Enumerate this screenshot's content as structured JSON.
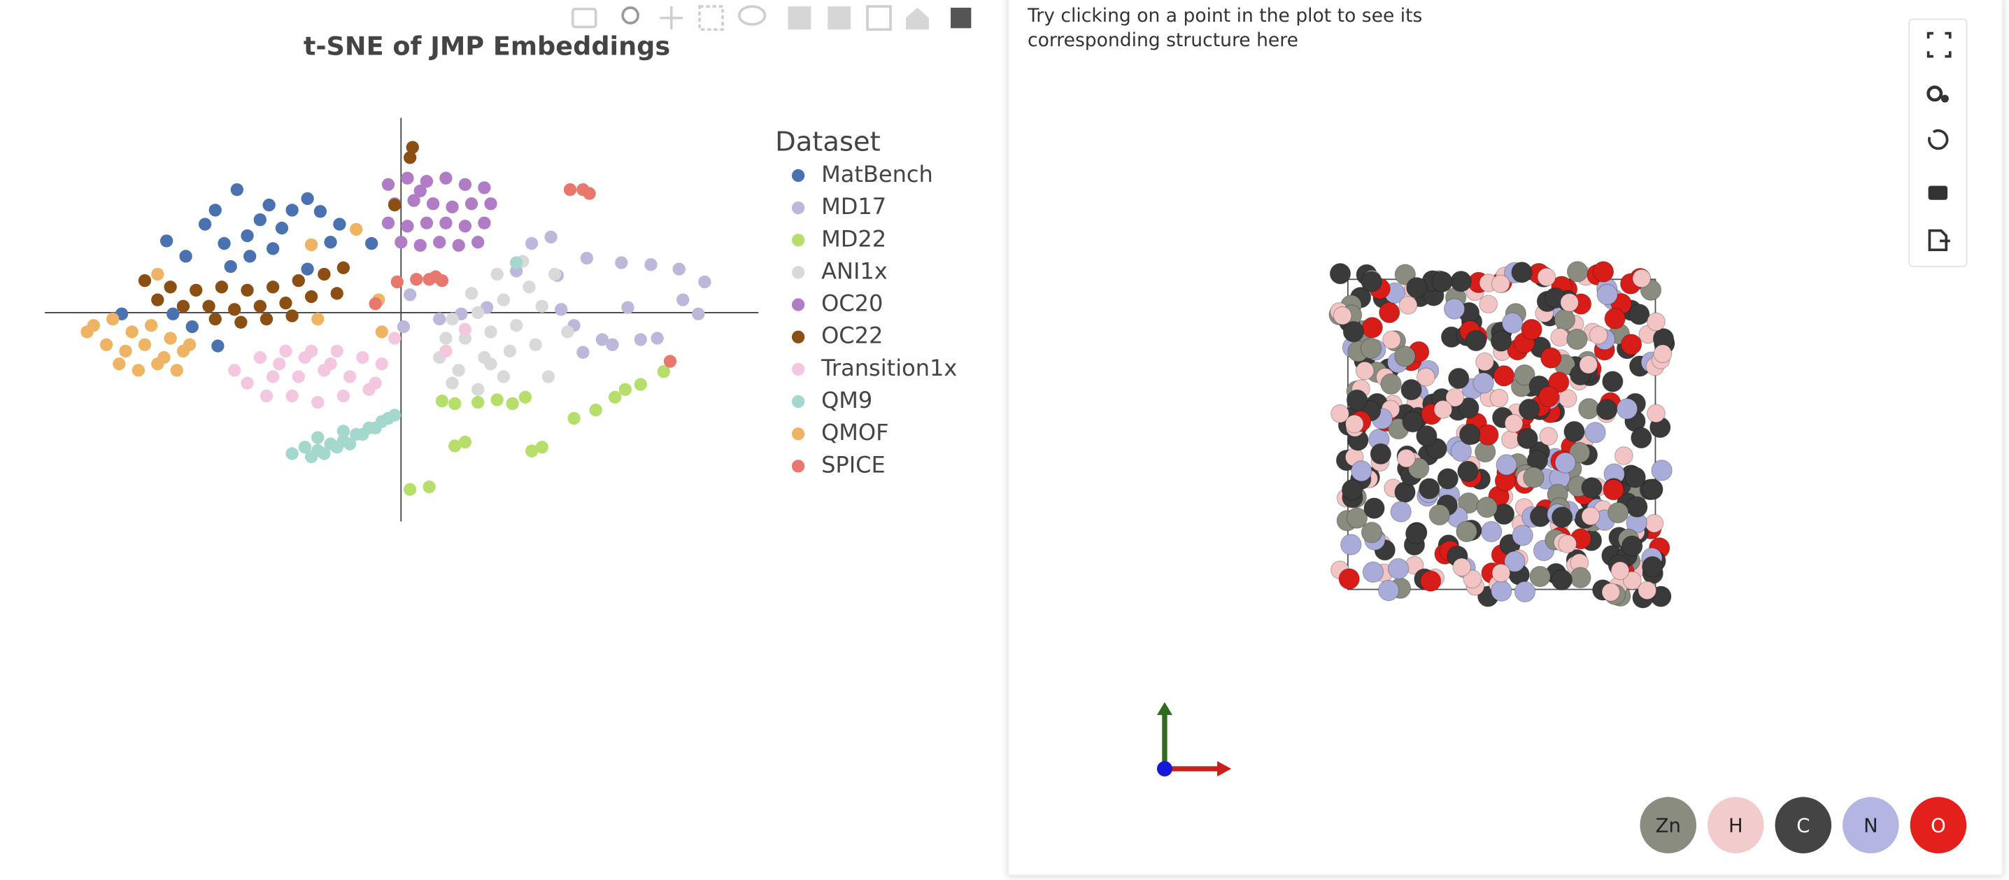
{
  "chart_data": {
    "type": "scatter",
    "title": "t-SNE of JMP Embeddings",
    "legend_title": "Dataset",
    "xlim": [
      -55.6,
      55.8
    ],
    "ylim": [
      -32.6,
      30.4
    ],
    "zeroline": true,
    "legend": "right",
    "series": [
      {
        "name": "MatBench",
        "color": "#4a72b0",
        "x": [
          -25.6,
          -14.6,
          -12.6,
          -20.6,
          -30.6,
          -36.6,
          -27.6,
          -18.6,
          -23.6,
          -9.6,
          -33.6,
          -26.6,
          -4.6,
          -14.6,
          -32.6,
          -35.6,
          -28.6,
          -43.6,
          -22,
          -17,
          -24,
          -29,
          -11,
          -20
        ],
        "values": [
          19.2,
          17.8,
          15.8,
          16.8,
          13.8,
          11.2,
          10.8,
          13.2,
          8.8,
          13.8,
          8.8,
          7.2,
          10.8,
          6.8,
          -2.2,
          -0.2,
          -5.2,
          -0.2,
          14.5,
          16,
          12,
          16,
          11,
          10
        ]
      },
      {
        "name": "MD17",
        "color": "#bcb8dc",
        "x": [
          23.4,
          20.4,
          34.4,
          43.4,
          47.4,
          46.4,
          35.4,
          31.4,
          37.4,
          28.4,
          9.4,
          13.4,
          0.4,
          1.4,
          24.4,
          39,
          44,
          29,
          25,
          18,
          33,
          40,
          6,
          27
        ],
        "values": [
          11.8,
          10.8,
          7.8,
          6.8,
          4.8,
          -0.2,
          0.8,
          -4.2,
          -4.2,
          -6.2,
          -0.2,
          0.8,
          -2.2,
          2.8,
          5.8,
          7.5,
          2,
          8.5,
          0.5,
          6.5,
          -5,
          -4,
          -1,
          -2
        ]
      },
      {
        "name": "MD22",
        "color": "#b5de6a",
        "x": [
          6.4,
          8.4,
          19.4,
          17.4,
          30.4,
          33.4,
          37.4,
          41,
          8.4,
          10,
          20.4,
          22,
          1.4,
          4.4,
          27,
          35,
          12,
          15
        ],
        "values": [
          -13.8,
          -14.2,
          -13.2,
          -14.2,
          -15.2,
          -13.2,
          -11.2,
          -9.2,
          -20.8,
          -20.2,
          -21.6,
          -21,
          -27.6,
          -27.2,
          -16.5,
          -12,
          -14,
          -13.6
        ]
      },
      {
        "name": "ANI1x",
        "color": "#d9d9d9",
        "x": [
          8,
          12,
          16,
          20,
          24,
          10,
          14,
          18,
          22,
          6,
          9,
          13,
          17,
          21,
          8,
          12,
          16,
          11,
          19,
          15,
          23,
          7,
          26,
          14
        ],
        "values": [
          -1,
          0,
          2,
          4,
          6,
          -4,
          -3,
          -2,
          1,
          -7,
          -9,
          -7,
          -6,
          -5,
          -11,
          -12,
          -10,
          3,
          8,
          6,
          -10,
          -4,
          -3,
          -8
        ]
      },
      {
        "name": "OC20",
        "color": "#b07cc6",
        "x": [
          -2,
          1,
          4,
          7,
          10,
          13,
          -1,
          2,
          5,
          8,
          11,
          14,
          -2,
          1,
          4,
          7,
          10,
          13,
          0,
          3,
          6,
          9,
          12,
          3
        ],
        "values": [
          20,
          21,
          20.5,
          21,
          20,
          19.5,
          17,
          17.5,
          17,
          16.5,
          17,
          17,
          14,
          13.5,
          14,
          14,
          13.5,
          14,
          11,
          10.5,
          11,
          10.5,
          11,
          19
        ]
      },
      {
        "name": "OC22",
        "color": "#8b4f14",
        "x": [
          -40,
          -36,
          -32,
          -28,
          -24,
          -20,
          -16,
          -12,
          -9,
          -38,
          -34,
          -30,
          -26,
          -22,
          -18,
          -14,
          -10,
          -29,
          -25,
          -21,
          -17,
          1.8,
          1.4,
          -1
        ],
        "values": [
          5,
          4,
          3.5,
          4,
          3.5,
          4,
          5,
          6,
          7,
          2,
          1,
          1,
          0.5,
          1,
          1.5,
          2.5,
          3,
          -1,
          -1.5,
          -1,
          -0.5,
          25.8,
          24.2,
          16.8
        ]
      },
      {
        "name": "Transition1x",
        "color": "#f4c7e1",
        "x": [
          -26,
          -22,
          -18,
          -14,
          -10,
          -6,
          -3,
          -24,
          -20,
          -16,
          -12,
          -8,
          -4,
          -21,
          -17,
          -13,
          -9,
          -5,
          -15,
          -11,
          10,
          7,
          -1,
          -19
        ],
        "values": [
          -9,
          -7,
          -6,
          -6,
          -6,
          -7,
          -8,
          -11,
          -10,
          -10,
          -9,
          -10,
          -11,
          -13,
          -13,
          -14,
          -13,
          -12,
          -7,
          -8,
          -2.6,
          -6,
          -4,
          -8
        ]
      },
      {
        "name": "QM9",
        "color": "#a4d8cc",
        "x": [
          -17,
          -15,
          -13,
          -11,
          -9,
          -7,
          -5,
          -3,
          -1,
          -14,
          -12,
          -10,
          -8,
          -6,
          -4,
          -2,
          -13,
          -9,
          18
        ],
        "values": [
          -22,
          -21,
          -21.5,
          -20.5,
          -20,
          -19,
          -18,
          -17,
          -16,
          -22.5,
          -22,
          -21,
          -20.5,
          -19,
          -18,
          -16.5,
          -19.5,
          -18.5,
          7.8
        ]
      },
      {
        "name": "QMOF",
        "color": "#eeb463",
        "x": [
          -48,
          -45,
          -42,
          -39,
          -36,
          -33,
          -46,
          -43,
          -40,
          -37,
          -34,
          -44,
          -41,
          -38,
          -35,
          -13,
          -7,
          -14,
          -3,
          -38,
          -3.5,
          -49
        ],
        "values": [
          -2,
          -1,
          -3,
          -2,
          -4,
          -5,
          -5,
          -6,
          -5,
          -7,
          -6,
          -8,
          -9,
          -8,
          -9,
          -1,
          13,
          10.6,
          -3,
          6,
          2,
          -3
        ]
      },
      {
        "name": "SPICE",
        "color": "#e8776e",
        "x": [
          2.4,
          4.4,
          -0.6,
          5.4,
          6.4,
          26.4,
          28.4,
          29.4,
          -4,
          42
        ],
        "values": [
          5.2,
          5.2,
          4.8,
          5.6,
          5,
          19.2,
          19.2,
          18.6,
          1.4,
          -7.6
        ]
      }
    ]
  },
  "viewer": {
    "hint": "Try clicking on a point in the plot to see its corresponding structure here",
    "elements": [
      {
        "symbol": "Zn",
        "color": "#8a8c80"
      },
      {
        "symbol": "H",
        "color": "#f2cccc"
      },
      {
        "symbol": "C",
        "color": "#444444"
      },
      {
        "symbol": "N",
        "color": "#b3b5e2"
      },
      {
        "symbol": "O",
        "color": "#e3201b"
      }
    ]
  }
}
